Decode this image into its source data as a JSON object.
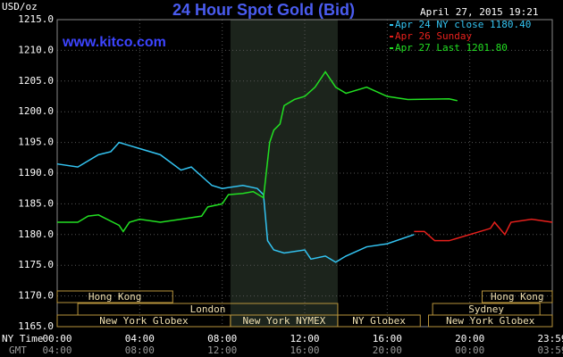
{
  "chart_data": {
    "type": "line",
    "title": "24 Hour Spot Gold (Bid)",
    "subtitle": "www.kitco.com",
    "timestamp": "April 27, 2015 19:21",
    "ylabel": "USD/oz",
    "xlabel": "NY Time",
    "x2label": "GMT",
    "xlim": [
      0,
      24
    ],
    "ylim": [
      1165,
      1215
    ],
    "yticks": [
      {
        "value": 1165,
        "label": "1165.0"
      },
      {
        "value": 1170,
        "label": "1170.0"
      },
      {
        "value": 1175,
        "label": "1175.0"
      },
      {
        "value": 1180,
        "label": "1180.0"
      },
      {
        "value": 1185,
        "label": "1185.0"
      },
      {
        "value": 1190,
        "label": "1190.0"
      },
      {
        "value": 1195,
        "label": "1195.0"
      },
      {
        "value": 1200,
        "label": "1200.0"
      },
      {
        "value": 1205,
        "label": "1205.0"
      },
      {
        "value": 1210,
        "label": "1210.0"
      },
      {
        "value": 1215,
        "label": "1215.0"
      }
    ],
    "xticks": [
      {
        "value": 0,
        "label": "00:00"
      },
      {
        "value": 4,
        "label": "04:00"
      },
      {
        "value": 8,
        "label": "08:00"
      },
      {
        "value": 12,
        "label": "12:00"
      },
      {
        "value": 16,
        "label": "16:00"
      },
      {
        "value": 20,
        "label": "20:00"
      },
      {
        "value": 24,
        "label": "23:59"
      }
    ],
    "x2ticks": [
      {
        "value": 0,
        "label": "04:00"
      },
      {
        "value": 4,
        "label": "08:00"
      },
      {
        "value": 8,
        "label": "12:00"
      },
      {
        "value": 12,
        "label": "16:00"
      },
      {
        "value": 16,
        "label": "20:00"
      },
      {
        "value": 20,
        "label": "00:00"
      },
      {
        "value": 24,
        "label": "03:59"
      }
    ],
    "grid": true,
    "highlight_range": [
      8.4,
      13.6
    ],
    "sessions": [
      {
        "label": "Hong Kong",
        "start": 0,
        "end": 5.6,
        "row": 0
      },
      {
        "label": "Hong Kong",
        "start": 20.6,
        "end": 24,
        "row": 0
      },
      {
        "label": "London",
        "start": 1,
        "end": 13.6,
        "row": 1
      },
      {
        "label": "Sydney",
        "start": 18.2,
        "end": 23.4,
        "row": 1
      },
      {
        "label": "New York Globex",
        "start": 0,
        "end": 8.4,
        "row": 2
      },
      {
        "label": "New York NYMEX",
        "start": 8.4,
        "end": 13.6,
        "row": 2
      },
      {
        "label": "NY Globex",
        "start": 13.6,
        "end": 17.6,
        "row": 2
      },
      {
        "label": "New York Globex",
        "start": 18,
        "end": 24,
        "row": 2
      }
    ],
    "series": [
      {
        "name": "Apr 24 NY close 1180.40",
        "color": "#33c4f2",
        "x": [
          0,
          1,
          2,
          2.6,
          3,
          3.5,
          4,
          5,
          6,
          6.5,
          7.5,
          8,
          9,
          9.7,
          10,
          10.2,
          10.5,
          11,
          12,
          12.3,
          13,
          13.5,
          14,
          15,
          16,
          17.3
        ],
        "values": [
          1191.5,
          1191,
          1193,
          1193.5,
          1195,
          1194.5,
          1194,
          1193,
          1190.5,
          1191,
          1188,
          1187.5,
          1188,
          1187.5,
          1186.5,
          1179,
          1177.5,
          1177,
          1177.5,
          1176,
          1176.5,
          1175.5,
          1176.5,
          1178,
          1178.5,
          1180
        ]
      },
      {
        "name": "Apr 26 Sunday",
        "color": "#e8201c",
        "x": [
          17.3,
          17.8,
          18.3,
          19,
          20,
          21,
          21.2,
          21.7,
          22,
          23,
          24
        ],
        "values": [
          1180.5,
          1180.5,
          1179,
          1179,
          1180,
          1181,
          1182,
          1180,
          1182,
          1182.5,
          1182
        ]
      },
      {
        "name": "Apr 27 Last 1201.80",
        "color": "#22e022",
        "x": [
          0,
          1,
          1.5,
          2,
          3,
          3.2,
          3.5,
          4,
          5,
          6,
          7,
          7.3,
          8,
          8.3,
          9,
          9.5,
          10,
          10.3,
          10.5,
          10.8,
          11,
          11.5,
          12,
          12.5,
          13,
          13.5,
          14,
          15,
          16,
          17,
          19,
          19.4
        ],
        "values": [
          1182,
          1182,
          1183,
          1183.2,
          1181.5,
          1180.5,
          1182,
          1182.5,
          1182,
          1182.5,
          1183,
          1184.5,
          1185,
          1186.5,
          1186.7,
          1187,
          1186,
          1195,
          1197,
          1198,
          1201,
          1202,
          1202.5,
          1204,
          1206.5,
          1204,
          1203,
          1204,
          1202.5,
          1202,
          1202.1,
          1201.8
        ]
      }
    ]
  }
}
